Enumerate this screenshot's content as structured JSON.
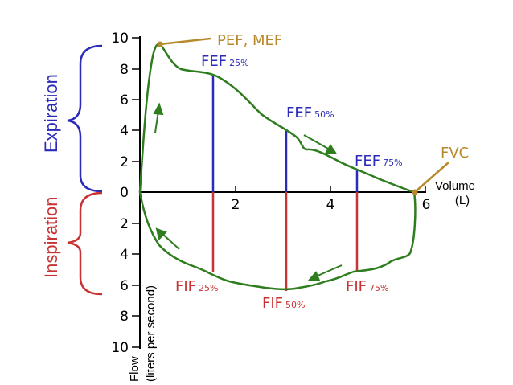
{
  "y_ticks_upper": [
    "10",
    "8",
    "6",
    "4",
    "2",
    "0"
  ],
  "y_ticks_lower": [
    "2",
    "4",
    "6",
    "8",
    "10"
  ],
  "x_ticks": [
    "2",
    "4",
    "6"
  ],
  "x_axis": {
    "label_1": "Volume",
    "label_2": "(L)"
  },
  "y_axis": {
    "label_1": "Flow",
    "label_2": "(liters per second)"
  },
  "expiration_label": "Expiration",
  "inspiration_label": "Inspiration",
  "pef_label": "PEF, MEF",
  "fvc_label": "FVC",
  "fef25": {
    "main": "FEF",
    "sub": "25%"
  },
  "fef50": {
    "main": "FEF",
    "sub": "50%"
  },
  "fef75": {
    "main": "FEF",
    "sub": "75%"
  },
  "fif25": {
    "main": "FIF",
    "sub": "25%"
  },
  "fif50": {
    "main": "FIF",
    "sub": "50%"
  },
  "fif75": {
    "main": "FIF",
    "sub": "75%"
  },
  "colors": {
    "curve": "#2e7d1e",
    "expiration": "#2b2bb8",
    "inspiration": "#c83232",
    "annotation": "#b8892a",
    "axis": "#000000"
  }
}
